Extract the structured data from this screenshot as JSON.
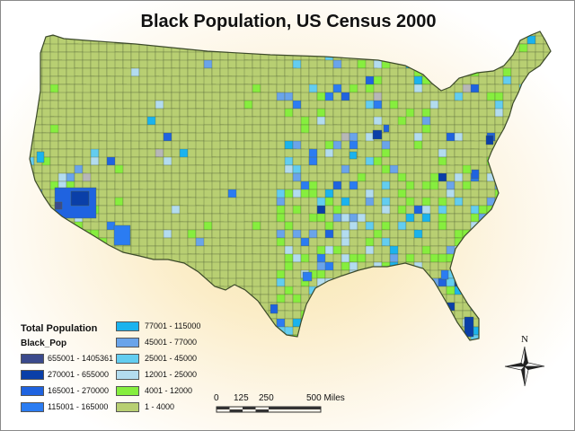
{
  "title": "Black Population, US Census 2000",
  "legend": {
    "heading": "Total Population",
    "field": "Black_Pop",
    "classes": [
      {
        "label": "655001 - 1405361",
        "color": "#3b4a8c"
      },
      {
        "label": "270001 - 655000",
        "color": "#0a3fa8"
      },
      {
        "label": "165001 - 270000",
        "color": "#1f63e0"
      },
      {
        "label": "115001 - 165000",
        "color": "#2b7cf2"
      },
      {
        "label": "77001 - 115000",
        "color": "#1ab3ee"
      },
      {
        "label": "45001 - 77000",
        "color": "#6aa4ea"
      },
      {
        "label": "25001 - 45000",
        "color": "#63cdf0"
      },
      {
        "label": "12001 - 25000",
        "color": "#b3dcef"
      },
      {
        "label": "4001 - 12000",
        "color": "#86ee3e"
      },
      {
        "label": "1 - 4000",
        "color": "#b8cf72"
      }
    ]
  },
  "scale_bar": {
    "ticks": [
      "0",
      "125",
      "250",
      "500 Miles"
    ]
  },
  "north_arrow": {
    "label": "N",
    "icon": "compass-rose-icon"
  },
  "colors": {
    "base_county": "#b8cf72",
    "county_border": "#55663a",
    "no_data": "#b7b7b7"
  }
}
